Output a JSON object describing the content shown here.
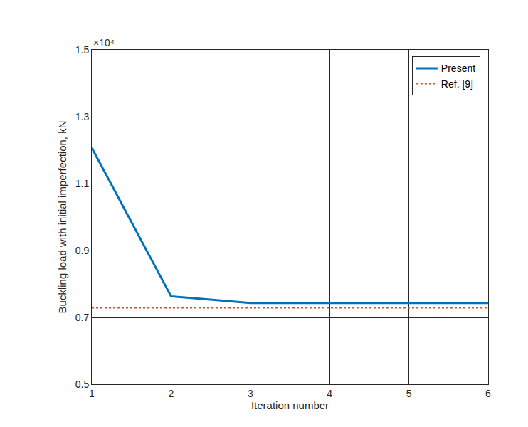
{
  "chart_data": {
    "type": "line",
    "x_label": "Iteration number",
    "y_label": "Buckling load with initial imperfection, kN",
    "annotations": [
      {
        "text": "×10⁴"
      }
    ],
    "x": [
      1,
      2,
      3,
      4,
      5,
      6
    ],
    "series": [
      {
        "name": "Present",
        "color": "#0072BD",
        "line_style": "solid",
        "values": [
          1.207,
          0.763,
          0.743,
          0.743,
          0.743,
          0.743
        ]
      },
      {
        "name": "Ref. [9]",
        "color": "#D95319",
        "line_style": "dotted",
        "values": [
          0.729,
          0.729,
          0.729,
          0.729,
          0.729,
          0.729
        ]
      }
    ],
    "xlim": [
      1,
      6
    ],
    "xticks": [
      1,
      2,
      3,
      4,
      5,
      6
    ],
    "ylim": [
      0.5,
      1.5
    ],
    "yticks": [
      0.5,
      0.7,
      0.9,
      1.1,
      1.3,
      1.5
    ],
    "grid": true,
    "legend": "upper right"
  }
}
